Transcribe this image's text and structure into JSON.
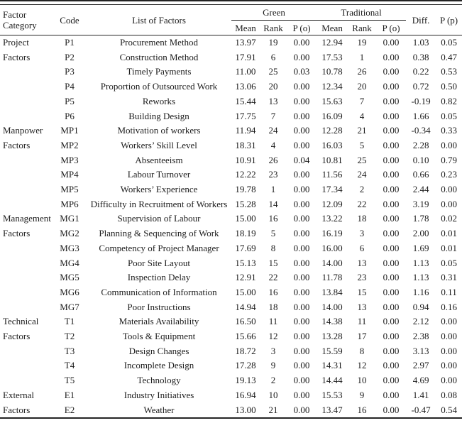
{
  "table": {
    "header": {
      "factor_category": "Factor Category",
      "code": "Code",
      "list_of_factors": "List of Factors",
      "green_group": "Green",
      "traditional_group": "Traditional",
      "mean": "Mean",
      "rank": "Rank",
      "p_o": "P (o)",
      "diff": "Diff.",
      "p_p": "P (p)"
    },
    "groups": [
      {
        "category": "Project Factors",
        "rows": [
          [
            "P1",
            "Procurement Method",
            "13.97",
            "19",
            "0.00",
            "12.94",
            "19",
            "0.00",
            "1.03",
            "0.05"
          ],
          [
            "P2",
            "Construction Method",
            "17.91",
            "6",
            "0.00",
            "17.53",
            "1",
            "0.00",
            "0.38",
            "0.47"
          ],
          [
            "P3",
            "Timely Payments",
            "11.00",
            "25",
            "0.03",
            "10.78",
            "26",
            "0.00",
            "0.22",
            "0.53"
          ],
          [
            "P4",
            "Proportion of Outsourced Work",
            "13.06",
            "20",
            "0.00",
            "12.34",
            "20",
            "0.00",
            "0.72",
            "0.50"
          ],
          [
            "P5",
            "Reworks",
            "15.44",
            "13",
            "0.00",
            "15.63",
            "7",
            "0.00",
            "-0.19",
            "0.82"
          ],
          [
            "P6",
            "Building Design",
            "17.75",
            "7",
            "0.00",
            "16.09",
            "4",
            "0.00",
            "1.66",
            "0.05"
          ]
        ]
      },
      {
        "category": "Manpower Factors",
        "rows": [
          [
            "MP1",
            "Motivation of workers",
            "11.94",
            "24",
            "0.00",
            "12.28",
            "21",
            "0.00",
            "-0.34",
            "0.33"
          ],
          [
            "MP2",
            "Workers’ Skill Level",
            "18.31",
            "4",
            "0.00",
            "16.03",
            "5",
            "0.00",
            "2.28",
            "0.00"
          ],
          [
            "MP3",
            "Absenteeism",
            "10.91",
            "26",
            "0.04",
            "10.81",
            "25",
            "0.00",
            "0.10",
            "0.79"
          ],
          [
            "MP4",
            "Labour Turnover",
            "12.22",
            "23",
            "0.00",
            "11.56",
            "24",
            "0.00",
            "0.66",
            "0.23"
          ],
          [
            "MP5",
            "Workers’ Experience",
            "19.78",
            "1",
            "0.00",
            "17.34",
            "2",
            "0.00",
            "2.44",
            "0.00"
          ],
          [
            "MP6",
            "Difficulty in Recruitment of Workers",
            "15.28",
            "14",
            "0.00",
            "12.09",
            "22",
            "0.00",
            "3.19",
            "0.00"
          ]
        ]
      },
      {
        "category": "Management Factors",
        "rows": [
          [
            "MG1",
            "Supervision of Labour",
            "15.00",
            "16",
            "0.00",
            "13.22",
            "18",
            "0.00",
            "1.78",
            "0.02"
          ],
          [
            "MG2",
            "Planning & Sequencing of Work",
            "18.19",
            "5",
            "0.00",
            "16.19",
            "3",
            "0.00",
            "2.00",
            "0.01"
          ],
          [
            "MG3",
            "Competency of Project Manager",
            "17.69",
            "8",
            "0.00",
            "16.00",
            "6",
            "0.00",
            "1.69",
            "0.01"
          ],
          [
            "MG4",
            "Poor Site Layout",
            "15.13",
            "15",
            "0.00",
            "14.00",
            "13",
            "0.00",
            "1.13",
            "0.05"
          ],
          [
            "MG5",
            "Inspection Delay",
            "12.91",
            "22",
            "0.00",
            "11.78",
            "23",
            "0.00",
            "1.13",
            "0.31"
          ],
          [
            "MG6",
            "Communication of Information",
            "15.00",
            "16",
            "0.00",
            "13.84",
            "15",
            "0.00",
            "1.16",
            "0.11"
          ],
          [
            "MG7",
            "Poor Instructions",
            "14.94",
            "18",
            "0.00",
            "14.00",
            "13",
            "0.00",
            "0.94",
            "0.16"
          ]
        ]
      },
      {
        "category": "Technical Factors",
        "rows": [
          [
            "T1",
            "Materials Availability",
            "16.50",
            "11",
            "0.00",
            "14.38",
            "11",
            "0.00",
            "2.12",
            "0.00"
          ],
          [
            "T2",
            "Tools & Equipment",
            "15.66",
            "12",
            "0.00",
            "13.28",
            "17",
            "0.00",
            "2.38",
            "0.00"
          ],
          [
            "T3",
            "Design Changes",
            "18.72",
            "3",
            "0.00",
            "15.59",
            "8",
            "0.00",
            "3.13",
            "0.00"
          ],
          [
            "T4",
            "Incomplete Design",
            "17.28",
            "9",
            "0.00",
            "14.31",
            "12",
            "0.00",
            "2.97",
            "0.00"
          ],
          [
            "T5",
            "Technology",
            "19.13",
            "2",
            "0.00",
            "14.44",
            "10",
            "0.00",
            "4.69",
            "0.00"
          ]
        ]
      },
      {
        "category": "External Factors",
        "rows": [
          [
            "E1",
            "Industry Initiatives",
            "16.94",
            "10",
            "0.00",
            "15.53",
            "9",
            "0.00",
            "1.41",
            "0.08"
          ],
          [
            "E2",
            "Weather",
            "13.00",
            "21",
            "0.00",
            "13.47",
            "16",
            "0.00",
            "-0.47",
            "0.54"
          ]
        ]
      }
    ]
  }
}
